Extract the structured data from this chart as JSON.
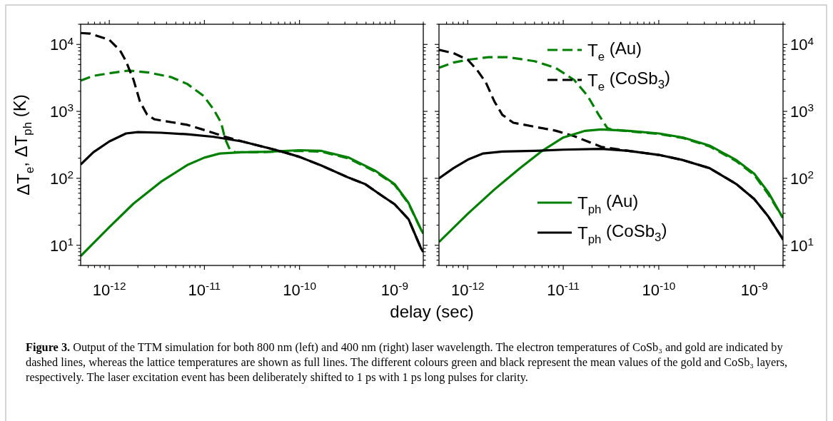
{
  "chart_data": [
    {
      "type": "line",
      "log": "xy",
      "xlim": [
        5e-13,
        2e-09
      ],
      "ylim": [
        5,
        20000
      ],
      "xticks": [
        {
          "value": 6e-13,
          "label": null
        },
        {
          "value": 7e-13,
          "label": null
        },
        {
          "value": 8e-13,
          "label": null
        },
        {
          "value": 9e-13,
          "label": null
        },
        {
          "value": 1e-12,
          "label": "10$^{-12}$"
        },
        {
          "value": 2e-12,
          "label": null
        },
        {
          "value": 3e-12,
          "label": null
        },
        {
          "value": 4e-12,
          "label": null
        },
        {
          "value": 5e-12,
          "label": null
        },
        {
          "value": 6e-12,
          "label": null
        },
        {
          "value": 7e-12,
          "label": null
        },
        {
          "value": 8e-12,
          "label": null
        },
        {
          "value": 9e-12,
          "label": null
        },
        {
          "value": 1e-11,
          "label": "10$^{-11}$"
        },
        {
          "value": 2e-11,
          "label": null
        },
        {
          "value": 3e-11,
          "label": null
        },
        {
          "value": 4e-11,
          "label": null
        },
        {
          "value": 5e-11,
          "label": null
        },
        {
          "value": 6e-11,
          "label": null
        },
        {
          "value": 7e-11,
          "label": null
        },
        {
          "value": 8e-11,
          "label": null
        },
        {
          "value": 9e-11,
          "label": null
        },
        {
          "value": 1e-10,
          "label": "10$^{-10}$"
        },
        {
          "value": 2e-10,
          "label": null
        },
        {
          "value": 3e-10,
          "label": null
        },
        {
          "value": 4e-10,
          "label": null
        },
        {
          "value": 5e-10,
          "label": null
        },
        {
          "value": 6e-10,
          "label": null
        },
        {
          "value": 7e-10,
          "label": null
        },
        {
          "value": 8e-10,
          "label": null
        },
        {
          "value": 9e-10,
          "label": null
        },
        {
          "value": 1e-09,
          "label": "10$^{-9}$"
        },
        {
          "value": 2e-09,
          "label": null
        }
      ],
      "yticks": [
        {
          "value": 5,
          "label": null
        },
        {
          "value": 6,
          "label": null
        },
        {
          "value": 7,
          "label": null
        },
        {
          "value": 8,
          "label": null
        },
        {
          "value": 9,
          "label": null
        },
        {
          "value": 10,
          "label": "10$^{1}$"
        },
        {
          "value": 20,
          "label": null
        },
        {
          "value": 30,
          "label": null
        },
        {
          "value": 40,
          "label": null
        },
        {
          "value": 50,
          "label": null
        },
        {
          "value": 60,
          "label": null
        },
        {
          "value": 70,
          "label": null
        },
        {
          "value": 80,
          "label": null
        },
        {
          "value": 90,
          "label": null
        },
        {
          "value": 100,
          "label": "10$^{2}$"
        },
        {
          "value": 200,
          "label": null
        },
        {
          "value": 300,
          "label": null
        },
        {
          "value": 400,
          "label": null
        },
        {
          "value": 500,
          "label": null
        },
        {
          "value": 600,
          "label": null
        },
        {
          "value": 700,
          "label": null
        },
        {
          "value": 800,
          "label": null
        },
        {
          "value": 900,
          "label": null
        },
        {
          "value": 1000,
          "label": "10$^{3}$"
        },
        {
          "value": 2000,
          "label": null
        },
        {
          "value": 3000,
          "label": null
        },
        {
          "value": 4000,
          "label": null
        },
        {
          "value": 5000,
          "label": null
        },
        {
          "value": 6000,
          "label": null
        },
        {
          "value": 7000,
          "label": null
        },
        {
          "value": 8000,
          "label": null
        },
        {
          "value": 9000,
          "label": null
        },
        {
          "value": 10000,
          "label": "10$^{4}$"
        },
        {
          "value": 20000,
          "label": null
        }
      ],
      "xlabel": "delay (sec)",
      "ylabel": "ΔT$_{e}$, ΔT$_{ph}$ (K)",
      "annotations": [
        "Figure 3. Output of the TTM simulation for both 800 nm (left) and 400 nm (right) laser wavelength. The electron temperatures of CoSb₃ and gold are indicated by dashed lines, whereas the lattice temperatures are shown as full lines. The different colours green and black represent the mean values of the gold and CoSb₃ layers, respectively. The laser excitation event has been deliberately shifted to 1 ps with 1 ps long pulses for clarity."
      ],
      "series": [
        {
          "color": "#008000",
          "line_style": "dashed",
          "x": [
            5e-13,
            6.8e-13,
            1e-12,
            1.6e-12,
            2.6e-12,
            4.5e-12,
            6.6e-12,
            9.8e-12,
            1.25e-11,
            1.5e-11,
            1.65e-11,
            1.85e-11,
            2.1e-11,
            3.4e-11,
            4.7e-11,
            1e-10,
            1.7e-10,
            3.3e-10,
            6.3e-10,
            1e-09,
            1.4e-09,
            1.9e-09,
            2e-09
          ],
          "values": [
            2880,
            3390,
            3710,
            4070,
            3800,
            3240,
            2570,
            1700,
            1070,
            676,
            389,
            270,
            245,
            245,
            248,
            258,
            250,
            198,
            125,
            80,
            42,
            17,
            15
          ]
        },
        {
          "color": "#000000",
          "line_style": "dashed",
          "x": [
            5e-13,
            6.3e-13,
            1e-12,
            1.3e-12,
            1.5e-12,
            1.8e-12,
            2.1e-12,
            2.5e-12,
            3e-12,
            4.5e-12,
            6.6e-12,
            1.05e-11,
            1.55e-11,
            2.5e-11,
            4.7e-11,
            6.9e-11,
            1e-10,
            1.7e-10,
            3.3e-10,
            4.9e-10,
            7.2e-10,
            1e-09,
            1.4e-09,
            1.9e-09,
            2e-09
          ],
          "values": [
            14800,
            14500,
            11700,
            8100,
            5600,
            2950,
            1400,
            890,
            760,
            690,
            630,
            515,
            430,
            355,
            283,
            245,
            209,
            155,
            102,
            82,
            56,
            41,
            24.5,
            8.9,
            8
          ]
        },
        {
          "color": "#008000",
          "line_style": "solid",
          "x": [
            5e-13,
            1e-12,
            1.8e-12,
            3.5e-12,
            6.6e-12,
            1e-11,
            1.45e-11,
            2.5e-11,
            4.7e-11,
            1e-10,
            1.7e-10,
            3.3e-10,
            6.3e-10,
            1e-09,
            1.4e-09,
            1.9e-09,
            2e-09
          ],
          "values": [
            6.9,
            18.6,
            42,
            89,
            158,
            204,
            235,
            245,
            250,
            263,
            257,
            204,
            129,
            82,
            43,
            17,
            15
          ]
        },
        {
          "color": "#000000",
          "line_style": "solid",
          "x": [
            5e-13,
            6.8e-13,
            1e-12,
            1.5e-12,
            2e-12,
            3.5e-12,
            6.6e-12,
            1.25e-11,
            2.5e-11,
            4.7e-11,
            6.9e-11,
            1e-10,
            1.7e-10,
            3.3e-10,
            4.9e-10,
            7.2e-10,
            1e-09,
            1.4e-09,
            1.9e-09,
            2e-09
          ],
          "values": [
            161,
            245,
            355,
            468,
            490,
            480,
            455,
            417,
            355,
            283,
            245,
            209,
            155,
            102,
            82,
            56,
            41,
            24.5,
            8.9,
            8
          ]
        }
      ]
    },
    {
      "type": "line",
      "log": "xy",
      "xlim": [
        5e-13,
        2e-09
      ],
      "ylim": [
        5,
        20000
      ],
      "legend": "top right",
      "xticks": [
        {
          "value": 6e-13,
          "label": null
        },
        {
          "value": 7e-13,
          "label": null
        },
        {
          "value": 8e-13,
          "label": null
        },
        {
          "value": 9e-13,
          "label": null
        },
        {
          "value": 1e-12,
          "label": "10$^{-12}$"
        },
        {
          "value": 2e-12,
          "label": null
        },
        {
          "value": 3e-12,
          "label": null
        },
        {
          "value": 4e-12,
          "label": null
        },
        {
          "value": 5e-12,
          "label": null
        },
        {
          "value": 6e-12,
          "label": null
        },
        {
          "value": 7e-12,
          "label": null
        },
        {
          "value": 8e-12,
          "label": null
        },
        {
          "value": 9e-12,
          "label": null
        },
        {
          "value": 1e-11,
          "label": "10$^{-11}$"
        },
        {
          "value": 2e-11,
          "label": null
        },
        {
          "value": 3e-11,
          "label": null
        },
        {
          "value": 4e-11,
          "label": null
        },
        {
          "value": 5e-11,
          "label": null
        },
        {
          "value": 6e-11,
          "label": null
        },
        {
          "value": 7e-11,
          "label": null
        },
        {
          "value": 8e-11,
          "label": null
        },
        {
          "value": 9e-11,
          "label": null
        },
        {
          "value": 1e-10,
          "label": "10$^{-10}$"
        },
        {
          "value": 2e-10,
          "label": null
        },
        {
          "value": 3e-10,
          "label": null
        },
        {
          "value": 4e-10,
          "label": null
        },
        {
          "value": 5e-10,
          "label": null
        },
        {
          "value": 6e-10,
          "label": null
        },
        {
          "value": 7e-10,
          "label": null
        },
        {
          "value": 8e-10,
          "label": null
        },
        {
          "value": 9e-10,
          "label": null
        },
        {
          "value": 1e-09,
          "label": "10$^{-9}$"
        },
        {
          "value": 2e-09,
          "label": null
        }
      ],
      "yticks": [
        {
          "value": 5,
          "label": null
        },
        {
          "value": 6,
          "label": null
        },
        {
          "value": 7,
          "label": null
        },
        {
          "value": 8,
          "label": null
        },
        {
          "value": 9,
          "label": null
        },
        {
          "value": 10,
          "label": "10$^{1}$"
        },
        {
          "value": 20,
          "label": null
        },
        {
          "value": 30,
          "label": null
        },
        {
          "value": 40,
          "label": null
        },
        {
          "value": 50,
          "label": null
        },
        {
          "value": 60,
          "label": null
        },
        {
          "value": 70,
          "label": null
        },
        {
          "value": 80,
          "label": null
        },
        {
          "value": 90,
          "label": null
        },
        {
          "value": 100,
          "label": "10$^{2}$"
        },
        {
          "value": 200,
          "label": null
        },
        {
          "value": 300,
          "label": null
        },
        {
          "value": 400,
          "label": null
        },
        {
          "value": 500,
          "label": null
        },
        {
          "value": 600,
          "label": null
        },
        {
          "value": 700,
          "label": null
        },
        {
          "value": 800,
          "label": null
        },
        {
          "value": 900,
          "label": null
        },
        {
          "value": 1000,
          "label": "10$^{3}$"
        },
        {
          "value": 2000,
          "label": null
        },
        {
          "value": 3000,
          "label": null
        },
        {
          "value": 4000,
          "label": null
        },
        {
          "value": 5000,
          "label": null
        },
        {
          "value": 6000,
          "label": null
        },
        {
          "value": 7000,
          "label": null
        },
        {
          "value": 8000,
          "label": null
        },
        {
          "value": 9000,
          "label": null
        },
        {
          "value": 10000,
          "label": "10$^{4}$"
        },
        {
          "value": 20000,
          "label": null
        }
      ],
      "series": [
        {
          "name": "T$_{e}$ (Au)",
          "color": "#008000",
          "line_style": "dashed",
          "x": [
            5e-13,
            7.1e-13,
            1e-12,
            1.66e-12,
            2.6e-12,
            5e-12,
            8.3e-12,
            1.3e-11,
            1.8e-11,
            2.35e-11,
            2.9e-11,
            3.2e-11,
            4.8e-11,
            1e-10,
            1.8e-10,
            3.4e-10,
            6.5e-10,
            1e-09,
            1.4e-09,
            1.95e-09,
            2e-09
          ],
          "values": [
            4470,
            5370,
            5900,
            6460,
            6460,
            5620,
            4470,
            2950,
            1700,
            890,
            562,
            537,
            505,
            460,
            400,
            300,
            180,
            112,
            58,
            27,
            26
          ]
        },
        {
          "name": "T$_{e}$ (CoSb$_{3}$)",
          "color": "#000000",
          "line_style": "dashed",
          "x": [
            5e-13,
            7.1e-13,
            1e-12,
            1.26e-12,
            1.55e-12,
            1.9e-12,
            2.3e-12,
            3e-12,
            5e-12,
            8.3e-12,
            1.3e-11,
            1.8e-11,
            2.5e-11,
            4.8e-11,
            1e-10,
            1.8e-10,
            3.4e-10,
            6.5e-10,
            1e-09,
            1.4e-09,
            1.95e-09,
            2e-09
          ],
          "values": [
            8300,
            7400,
            5900,
            4100,
            2690,
            1410,
            890,
            676,
            590,
            515,
            427,
            355,
            295,
            257,
            224,
            187,
            142,
            82,
            49,
            27,
            13,
            12
          ]
        },
        {
          "name": "T$_{ph}$ (Au)",
          "color": "#008000",
          "line_style": "solid",
          "x": [
            5e-13,
            1e-12,
            1.9e-12,
            3.5e-12,
            6e-12,
            1e-11,
            1.7e-11,
            2.5e-11,
            4.8e-11,
            1e-10,
            1.8e-10,
            3.4e-10,
            6.5e-10,
            1e-09,
            1.4e-09,
            1.95e-09,
            2e-09
          ],
          "values": [
            11.2,
            29.5,
            68,
            141,
            257,
            407,
            513,
            537,
            513,
            468,
            407,
            309,
            187,
            117,
            62,
            27,
            26
          ]
        },
        {
          "name": "T$_{ph}$ (CoSb$_{3}$)",
          "color": "#000000",
          "line_style": "solid",
          "x": [
            5e-13,
            7.1e-13,
            1e-12,
            1.45e-12,
            2.3e-12,
            5e-12,
            1e-11,
            2.5e-11,
            4.8e-11,
            1e-10,
            1.8e-10,
            3.4e-10,
            6.5e-10,
            1e-09,
            1.4e-09,
            1.95e-09,
            2e-09
          ],
          "values": [
            100,
            142,
            190,
            235,
            251,
            257,
            268,
            275,
            257,
            224,
            187,
            142,
            82,
            49,
            27,
            13,
            12
          ]
        }
      ]
    }
  ]
}
